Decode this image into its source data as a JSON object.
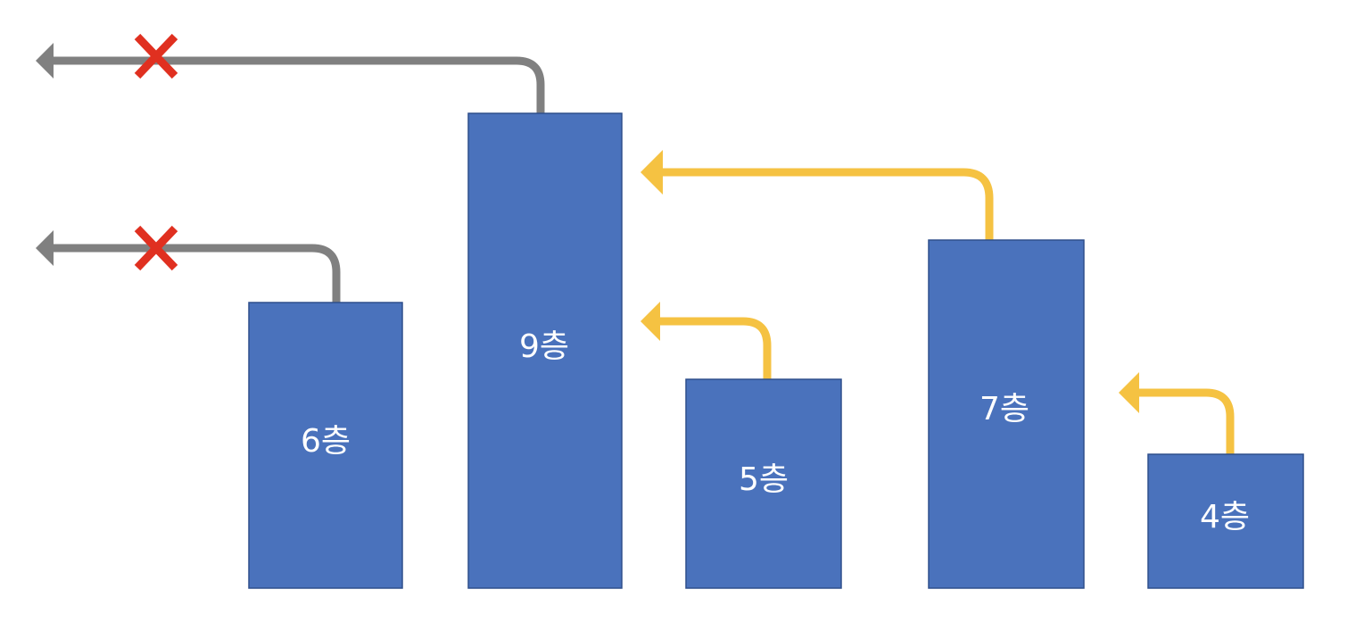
{
  "colors": {
    "building_fill": "#4a72bc",
    "building_border": "#2e4f8c",
    "label_text": "#ffffff",
    "blocked_arrow": "#808080",
    "visible_arrow": "#f5c242",
    "blocked_cross": "#e03020"
  },
  "buildings": [
    {
      "id": "b6",
      "label": "6층",
      "floors": 6
    },
    {
      "id": "b9",
      "label": "9층",
      "floors": 9
    },
    {
      "id": "b5",
      "label": "5층",
      "floors": 5
    },
    {
      "id": "b7",
      "label": "7층",
      "floors": 7
    },
    {
      "id": "b4",
      "label": "4층",
      "floors": 4
    }
  ],
  "arrows": [
    {
      "from": "9층",
      "direction": "left",
      "status": "blocked",
      "color": "#808080",
      "marker": "cross-icon"
    },
    {
      "from": "6층",
      "direction": "left",
      "status": "blocked",
      "color": "#808080",
      "marker": "cross-icon"
    },
    {
      "from": "7층",
      "to": "9층",
      "direction": "left",
      "status": "visible",
      "color": "#f5c242"
    },
    {
      "from": "5층",
      "to": "9층",
      "direction": "left",
      "status": "visible",
      "color": "#f5c242"
    },
    {
      "from": "4층",
      "to": "7층",
      "direction": "left",
      "status": "visible",
      "color": "#f5c242"
    }
  ]
}
